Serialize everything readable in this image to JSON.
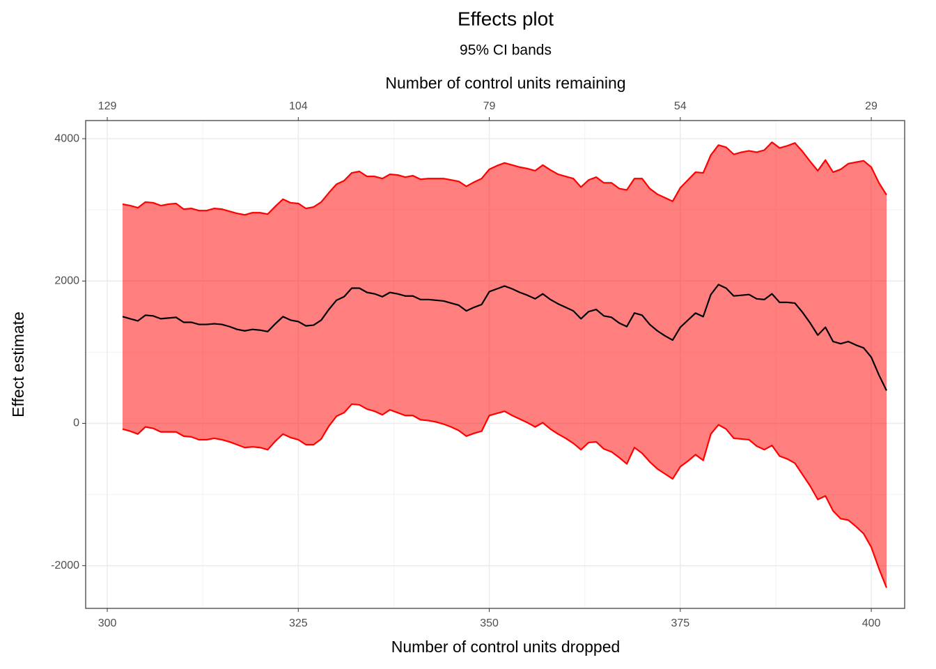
{
  "chart_data": {
    "type": "line",
    "title": "Effects plot",
    "subtitle": "95% CI bands",
    "x_label": "Number of control units dropped",
    "x2_label": "Number of control units remaining",
    "y_label": "Effect estimate",
    "xlim": [
      297.17,
      404.37
    ],
    "xticks": [
      300,
      325,
      350,
      375,
      400
    ],
    "x2lim": [
      131.83,
      24.63
    ],
    "x2ticks": [
      129,
      104,
      79,
      54,
      29
    ],
    "ylim": [
      -2600,
      4255
    ],
    "yticks": [
      -2000,
      0,
      2000,
      4000
    ],
    "grid": true,
    "band_fill": "rgba(255,0,0,0.5)",
    "x": [
      302,
      303,
      304,
      305,
      306,
      307,
      308,
      309,
      310,
      311,
      312,
      313,
      314,
      315,
      316,
      317,
      318,
      319,
      320,
      321,
      322,
      323,
      324,
      325,
      326,
      327,
      328,
      329,
      330,
      331,
      332,
      333,
      334,
      335,
      336,
      337,
      338,
      339,
      340,
      341,
      342,
      343,
      344,
      345,
      346,
      347,
      348,
      349,
      350,
      351,
      352,
      353,
      354,
      355,
      356,
      357,
      358,
      359,
      360,
      361,
      362,
      363,
      364,
      365,
      366,
      367,
      368,
      369,
      370,
      371,
      372,
      373,
      374,
      375,
      376,
      377,
      378,
      379,
      380,
      381,
      382,
      383,
      384,
      385,
      386,
      387,
      388,
      389,
      390,
      391,
      392,
      393,
      394,
      395,
      396,
      397,
      398,
      399,
      400,
      401,
      402
    ],
    "series": [
      {
        "color": "#ff0000",
        "values": [
          -80,
          -110,
          -150,
          -50,
          -70,
          -120,
          -120,
          -120,
          -180,
          -190,
          -230,
          -230,
          -210,
          -230,
          -260,
          -300,
          -340,
          -330,
          -340,
          -370,
          -250,
          -150,
          -200,
          -230,
          -300,
          -300,
          -220,
          -40,
          100,
          150,
          270,
          260,
          200,
          170,
          120,
          190,
          150,
          110,
          110,
          50,
          40,
          20,
          -10,
          -50,
          -100,
          -180,
          -140,
          -110,
          110,
          140,
          170,
          110,
          60,
          10,
          -50,
          10,
          -80,
          -150,
          -210,
          -280,
          -370,
          -270,
          -260,
          -360,
          -400,
          -480,
          -570,
          -340,
          -420,
          -540,
          -640,
          -710,
          -780,
          -610,
          -530,
          -440,
          -520,
          -150,
          -20,
          -80,
          -210,
          -220,
          -230,
          -320,
          -370,
          -310,
          -460,
          -500,
          -560,
          -720,
          -880,
          -1070,
          -1020,
          -1230,
          -1340,
          -1360,
          -1450,
          -1550,
          -1740,
          -2040,
          -2310
        ]
      },
      {
        "color": "#000000",
        "values": [
          1500,
          1470,
          1440,
          1520,
          1510,
          1470,
          1480,
          1490,
          1420,
          1420,
          1390,
          1390,
          1400,
          1390,
          1360,
          1320,
          1300,
          1320,
          1310,
          1290,
          1400,
          1500,
          1450,
          1430,
          1370,
          1380,
          1450,
          1600,
          1730,
          1780,
          1900,
          1900,
          1840,
          1820,
          1780,
          1840,
          1820,
          1790,
          1790,
          1740,
          1740,
          1730,
          1720,
          1690,
          1660,
          1580,
          1630,
          1670,
          1850,
          1890,
          1930,
          1890,
          1840,
          1800,
          1750,
          1820,
          1740,
          1680,
          1630,
          1580,
          1470,
          1570,
          1600,
          1510,
          1490,
          1410,
          1360,
          1550,
          1520,
          1390,
          1300,
          1230,
          1170,
          1350,
          1450,
          1550,
          1500,
          1810,
          1950,
          1900,
          1790,
          1800,
          1810,
          1750,
          1740,
          1820,
          1700,
          1700,
          1690,
          1560,
          1410,
          1240,
          1350,
          1150,
          1120,
          1150,
          1100,
          1060,
          930,
          680,
          460
        ]
      },
      {
        "color": "#ff0000",
        "values": [
          3080,
          3060,
          3030,
          3110,
          3100,
          3060,
          3080,
          3090,
          3010,
          3020,
          2990,
          2990,
          3020,
          3010,
          2980,
          2950,
          2930,
          2960,
          2960,
          2940,
          3050,
          3150,
          3100,
          3090,
          3020,
          3040,
          3110,
          3240,
          3360,
          3410,
          3520,
          3540,
          3470,
          3470,
          3440,
          3500,
          3490,
          3460,
          3480,
          3430,
          3440,
          3440,
          3440,
          3420,
          3400,
          3330,
          3390,
          3440,
          3570,
          3620,
          3660,
          3630,
          3600,
          3580,
          3550,
          3630,
          3560,
          3500,
          3470,
          3440,
          3320,
          3420,
          3460,
          3380,
          3380,
          3300,
          3280,
          3440,
          3440,
          3300,
          3220,
          3170,
          3120,
          3310,
          3420,
          3530,
          3520,
          3770,
          3910,
          3880,
          3780,
          3810,
          3830,
          3810,
          3840,
          3950,
          3870,
          3900,
          3940,
          3820,
          3680,
          3550,
          3700,
          3530,
          3570,
          3650,
          3670,
          3690,
          3600,
          3380,
          3210
        ]
      }
    ]
  }
}
